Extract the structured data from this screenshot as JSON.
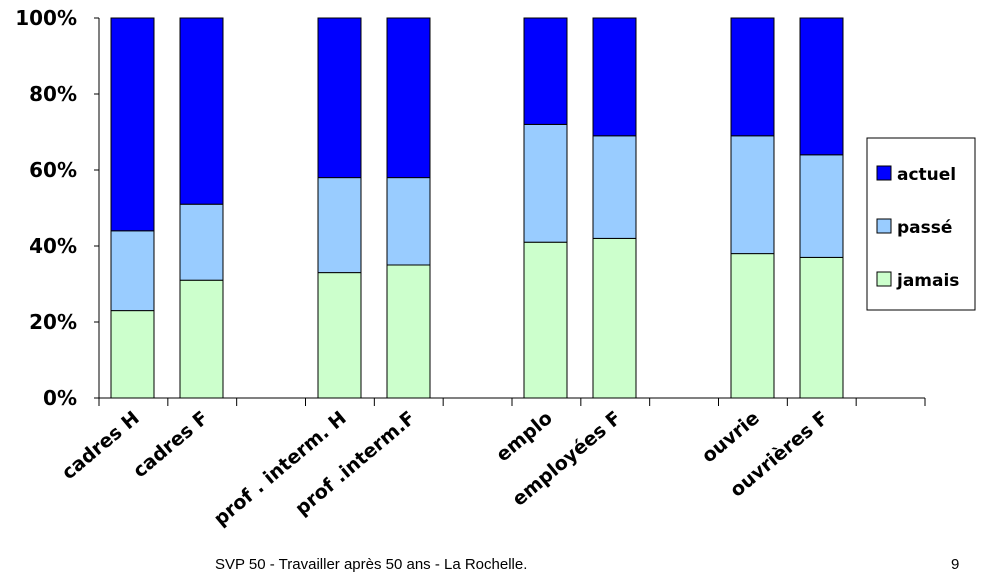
{
  "chart_data": {
    "type": "bar",
    "stacked": true,
    "percent": true,
    "categories": [
      "cadres H",
      "cadres F",
      "prof . interm. H",
      "prof .interm.F",
      "emplo",
      "employées F",
      "ouvrie",
      "ouvrières F"
    ],
    "series": [
      {
        "name": "jamais",
        "color": "#ccffcc",
        "values": [
          23,
          31,
          33,
          35,
          41,
          42,
          38,
          37
        ]
      },
      {
        "name": "passé",
        "color": "#99ccff",
        "values": [
          21,
          20,
          25,
          23,
          31,
          27,
          31,
          27
        ]
      },
      {
        "name": "actuel",
        "color": "#0000ff",
        "values": [
          56,
          49,
          42,
          42,
          28,
          31,
          31,
          36
        ]
      }
    ],
    "y_ticks": [
      "0%",
      "20%",
      "40%",
      "60%",
      "80%",
      "100%"
    ],
    "ylim": [
      0,
      100
    ],
    "legend_position": "right",
    "grid": false
  },
  "footer": {
    "text": "SVP 50 - Travailler après 50 ans - La Rochelle.",
    "page_number": "9"
  }
}
